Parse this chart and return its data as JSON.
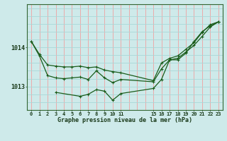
{
  "title": "Graphe pression niveau de la mer (hPa)",
  "bg_color": "#ceeaea",
  "line_color": "#1a5c1a",
  "grid_color_v": "#f0a0a0",
  "grid_color_h": "#a8d8d8",
  "xlim": [
    -0.5,
    23.5
  ],
  "ylim": [
    1012.4,
    1015.1
  ],
  "yticks": [
    1013,
    1014
  ],
  "series1_x": [
    0,
    1,
    2,
    3,
    4,
    5,
    6,
    7,
    8,
    9,
    10,
    11,
    15,
    16,
    17,
    18,
    19,
    20,
    21,
    22,
    23
  ],
  "series1_y": [
    1014.15,
    1013.82,
    1013.55,
    1013.52,
    1013.5,
    1013.5,
    1013.52,
    1013.48,
    1013.5,
    1013.42,
    1013.38,
    1013.35,
    1013.15,
    1013.6,
    1013.72,
    1013.78,
    1013.95,
    1014.12,
    1014.38,
    1014.58,
    1014.65
  ],
  "series2_x": [
    0,
    1,
    2,
    3,
    4,
    5,
    6,
    7,
    8,
    9,
    10,
    11,
    15,
    16,
    17,
    18,
    19,
    20,
    21,
    22,
    23
  ],
  "series2_y": [
    1014.15,
    1013.78,
    1013.28,
    1013.22,
    1013.2,
    1013.22,
    1013.24,
    1013.18,
    1013.4,
    1013.22,
    1013.1,
    1013.18,
    1013.12,
    1013.45,
    1013.68,
    1013.72,
    1013.88,
    1014.05,
    1014.28,
    1014.52,
    1014.65
  ],
  "series3_x": [
    3,
    6,
    7,
    8,
    9,
    10,
    11,
    15,
    16,
    17,
    18,
    19,
    20,
    21,
    22,
    23
  ],
  "series3_y": [
    1012.85,
    1012.75,
    1012.8,
    1012.92,
    1012.88,
    1012.65,
    1012.82,
    1012.95,
    1013.18,
    1013.68,
    1013.68,
    1013.85,
    1014.15,
    1014.4,
    1014.55,
    1014.65
  ]
}
